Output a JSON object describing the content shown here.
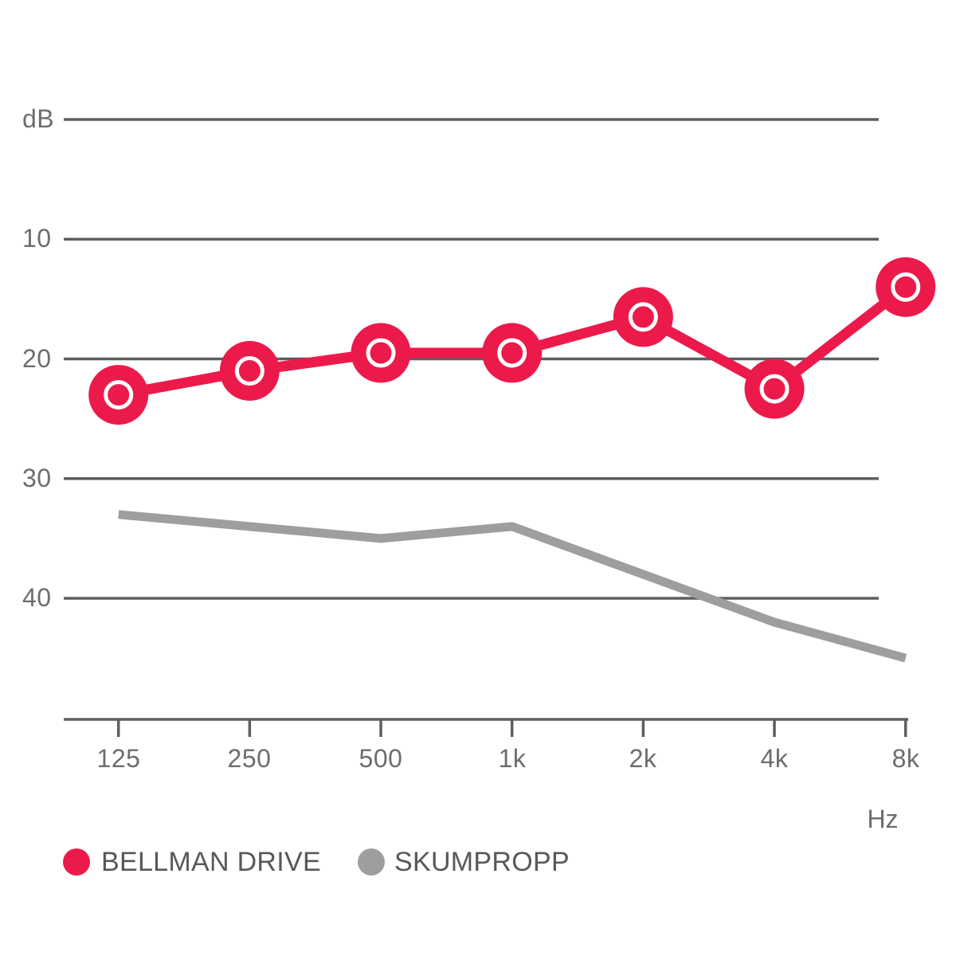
{
  "chart_data": {
    "type": "line",
    "title": "",
    "x_axis": {
      "unit_label": "Hz"
    },
    "y_axis": {
      "unit_label": "dB",
      "ticks": [
        "10",
        "20",
        "30",
        "40"
      ],
      "gridline_values": [
        0,
        10,
        20,
        30,
        40
      ]
    },
    "categories": [
      "125",
      "250",
      "500",
      "1k",
      "2k",
      "4k",
      "8k"
    ],
    "series": [
      {
        "name": "BELLMAN DRIVE",
        "color": "#EC1A4B",
        "marker": "ring-circle",
        "values": [
          23,
          21,
          19.5,
          19.5,
          16.5,
          22.5,
          14
        ]
      },
      {
        "name": "SKUMPROPP",
        "color": "#9E9E9E",
        "marker": "none",
        "values": [
          33,
          34,
          35,
          34,
          38,
          42,
          45
        ]
      }
    ],
    "ylim": [
      0,
      50
    ],
    "y_axis_inverted_downward": true,
    "grid": "horizontal",
    "legend_position": "bottom-left",
    "colors": {
      "grid": "#5e5e60",
      "axis_text": "#6d6d6d",
      "legend_text": "#58585a",
      "background": "#ffffff"
    }
  }
}
